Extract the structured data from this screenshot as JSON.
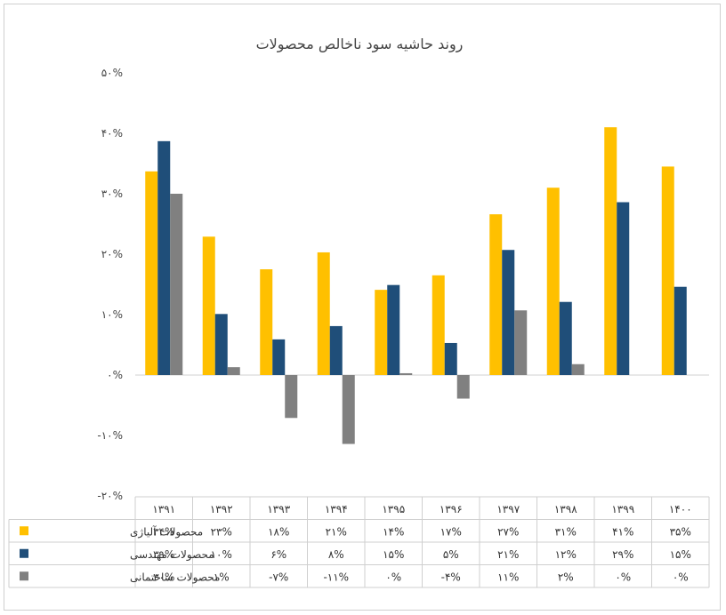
{
  "chart_data": {
    "type": "bar",
    "title": "روند حاشیه سود ناخالص محصولات",
    "categories": [
      "۱۳۹۱",
      "۱۳۹۲",
      "۱۳۹۳",
      "۱۳۹۴",
      "۱۳۹۵",
      "۱۳۹۶",
      "۱۳۹۷",
      "۱۳۹۸",
      "۱۳۹۹",
      "۱۴۰۰"
    ],
    "ylim": [
      -20,
      50
    ],
    "yticks": [
      -20,
      -10,
      0,
      10,
      20,
      30,
      40,
      50
    ],
    "ytick_labels": [
      "-۲۰%",
      "-۱۰%",
      "۰%",
      "۱۰%",
      "۲۰%",
      "۳۰%",
      "۴۰%",
      "۵۰%"
    ],
    "grid": false,
    "series": [
      {
        "name": "محصولات آلیاژی",
        "color": "#FFC000",
        "values": [
          33.7,
          22.9,
          17.5,
          20.3,
          14.1,
          16.5,
          26.6,
          31.0,
          41.0,
          34.5
        ],
        "labels": [
          "۳۴%",
          "۲۳%",
          "۱۸%",
          "۲۱%",
          "۱۴%",
          "۱۷%",
          "۲۷%",
          "۳۱%",
          "۴۱%",
          "۳۵%"
        ]
      },
      {
        "name": "محصولات مهندسی",
        "color": "#1F4E79",
        "values": [
          38.7,
          10.1,
          5.9,
          8.1,
          14.9,
          5.3,
          20.7,
          12.1,
          28.6,
          14.6
        ],
        "labels": [
          "۳۹%",
          "۱۰%",
          "۶%",
          "۸%",
          "۱۵%",
          "۵%",
          "۲۱%",
          "۱۲%",
          "۲۹%",
          "۱۵%"
        ]
      },
      {
        "name": "محصولات ساختمانی",
        "color": "#808080",
        "values": [
          30.0,
          1.3,
          -7.1,
          -11.4,
          0.3,
          -3.9,
          10.7,
          1.8,
          0,
          0
        ],
        "labels": [
          "۳۰%",
          "۱%",
          "-۷%",
          "-۱۱%",
          "۰%",
          "-۴%",
          "۱۱%",
          "۲%",
          "۰%",
          "۰%"
        ]
      }
    ]
  }
}
